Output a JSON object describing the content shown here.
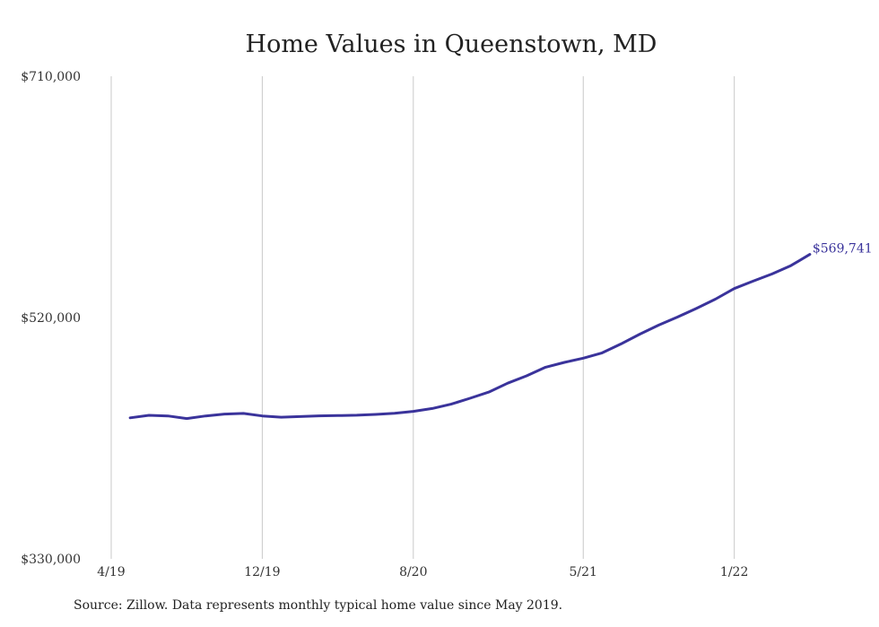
{
  "chart_data": {
    "type": "line",
    "title": "Home Values in Queenstown, MD",
    "xlabel": "",
    "ylabel": "",
    "ylim": [
      330000,
      710000
    ],
    "y_ticks": [
      "$710,000",
      "$520,000",
      "$330,000"
    ],
    "x_ticks": [
      "4/19",
      "12/19",
      "8/20",
      "5/21",
      "1/22"
    ],
    "grid": "vertical",
    "line_color": "#3a339b",
    "series": [
      {
        "x": [
          "2019-05",
          "2019-06",
          "2019-07",
          "2019-08",
          "2019-09",
          "2019-10",
          "2019-11",
          "2019-12",
          "2020-01",
          "2020-02",
          "2020-03",
          "2020-04",
          "2020-05",
          "2020-06",
          "2020-07",
          "2020-08",
          "2020-09",
          "2020-10",
          "2020-11",
          "2020-12",
          "2021-01",
          "2021-02",
          "2021-03",
          "2021-04",
          "2021-05",
          "2021-06",
          "2021-07",
          "2021-08",
          "2021-09",
          "2021-10",
          "2021-11",
          "2021-12",
          "2022-01",
          "2022-02",
          "2022-03",
          "2022-04",
          "2022-05"
        ],
        "values": [
          441000,
          443000,
          442500,
          440500,
          442500,
          444000,
          444500,
          442500,
          441500,
          442000,
          442600,
          442800,
          443100,
          443700,
          444600,
          446100,
          448400,
          451800,
          456400,
          461300,
          468300,
          474100,
          480900,
          484700,
          488000,
          492200,
          499200,
          506900,
          514100,
          520400,
          527300,
          534500,
          542800,
          548700,
          554300,
          560900,
          569741
        ]
      }
    ],
    "end_label": "$569,741",
    "source_note": "Source: Zillow. Data represents monthly typical home value since May 2019."
  }
}
